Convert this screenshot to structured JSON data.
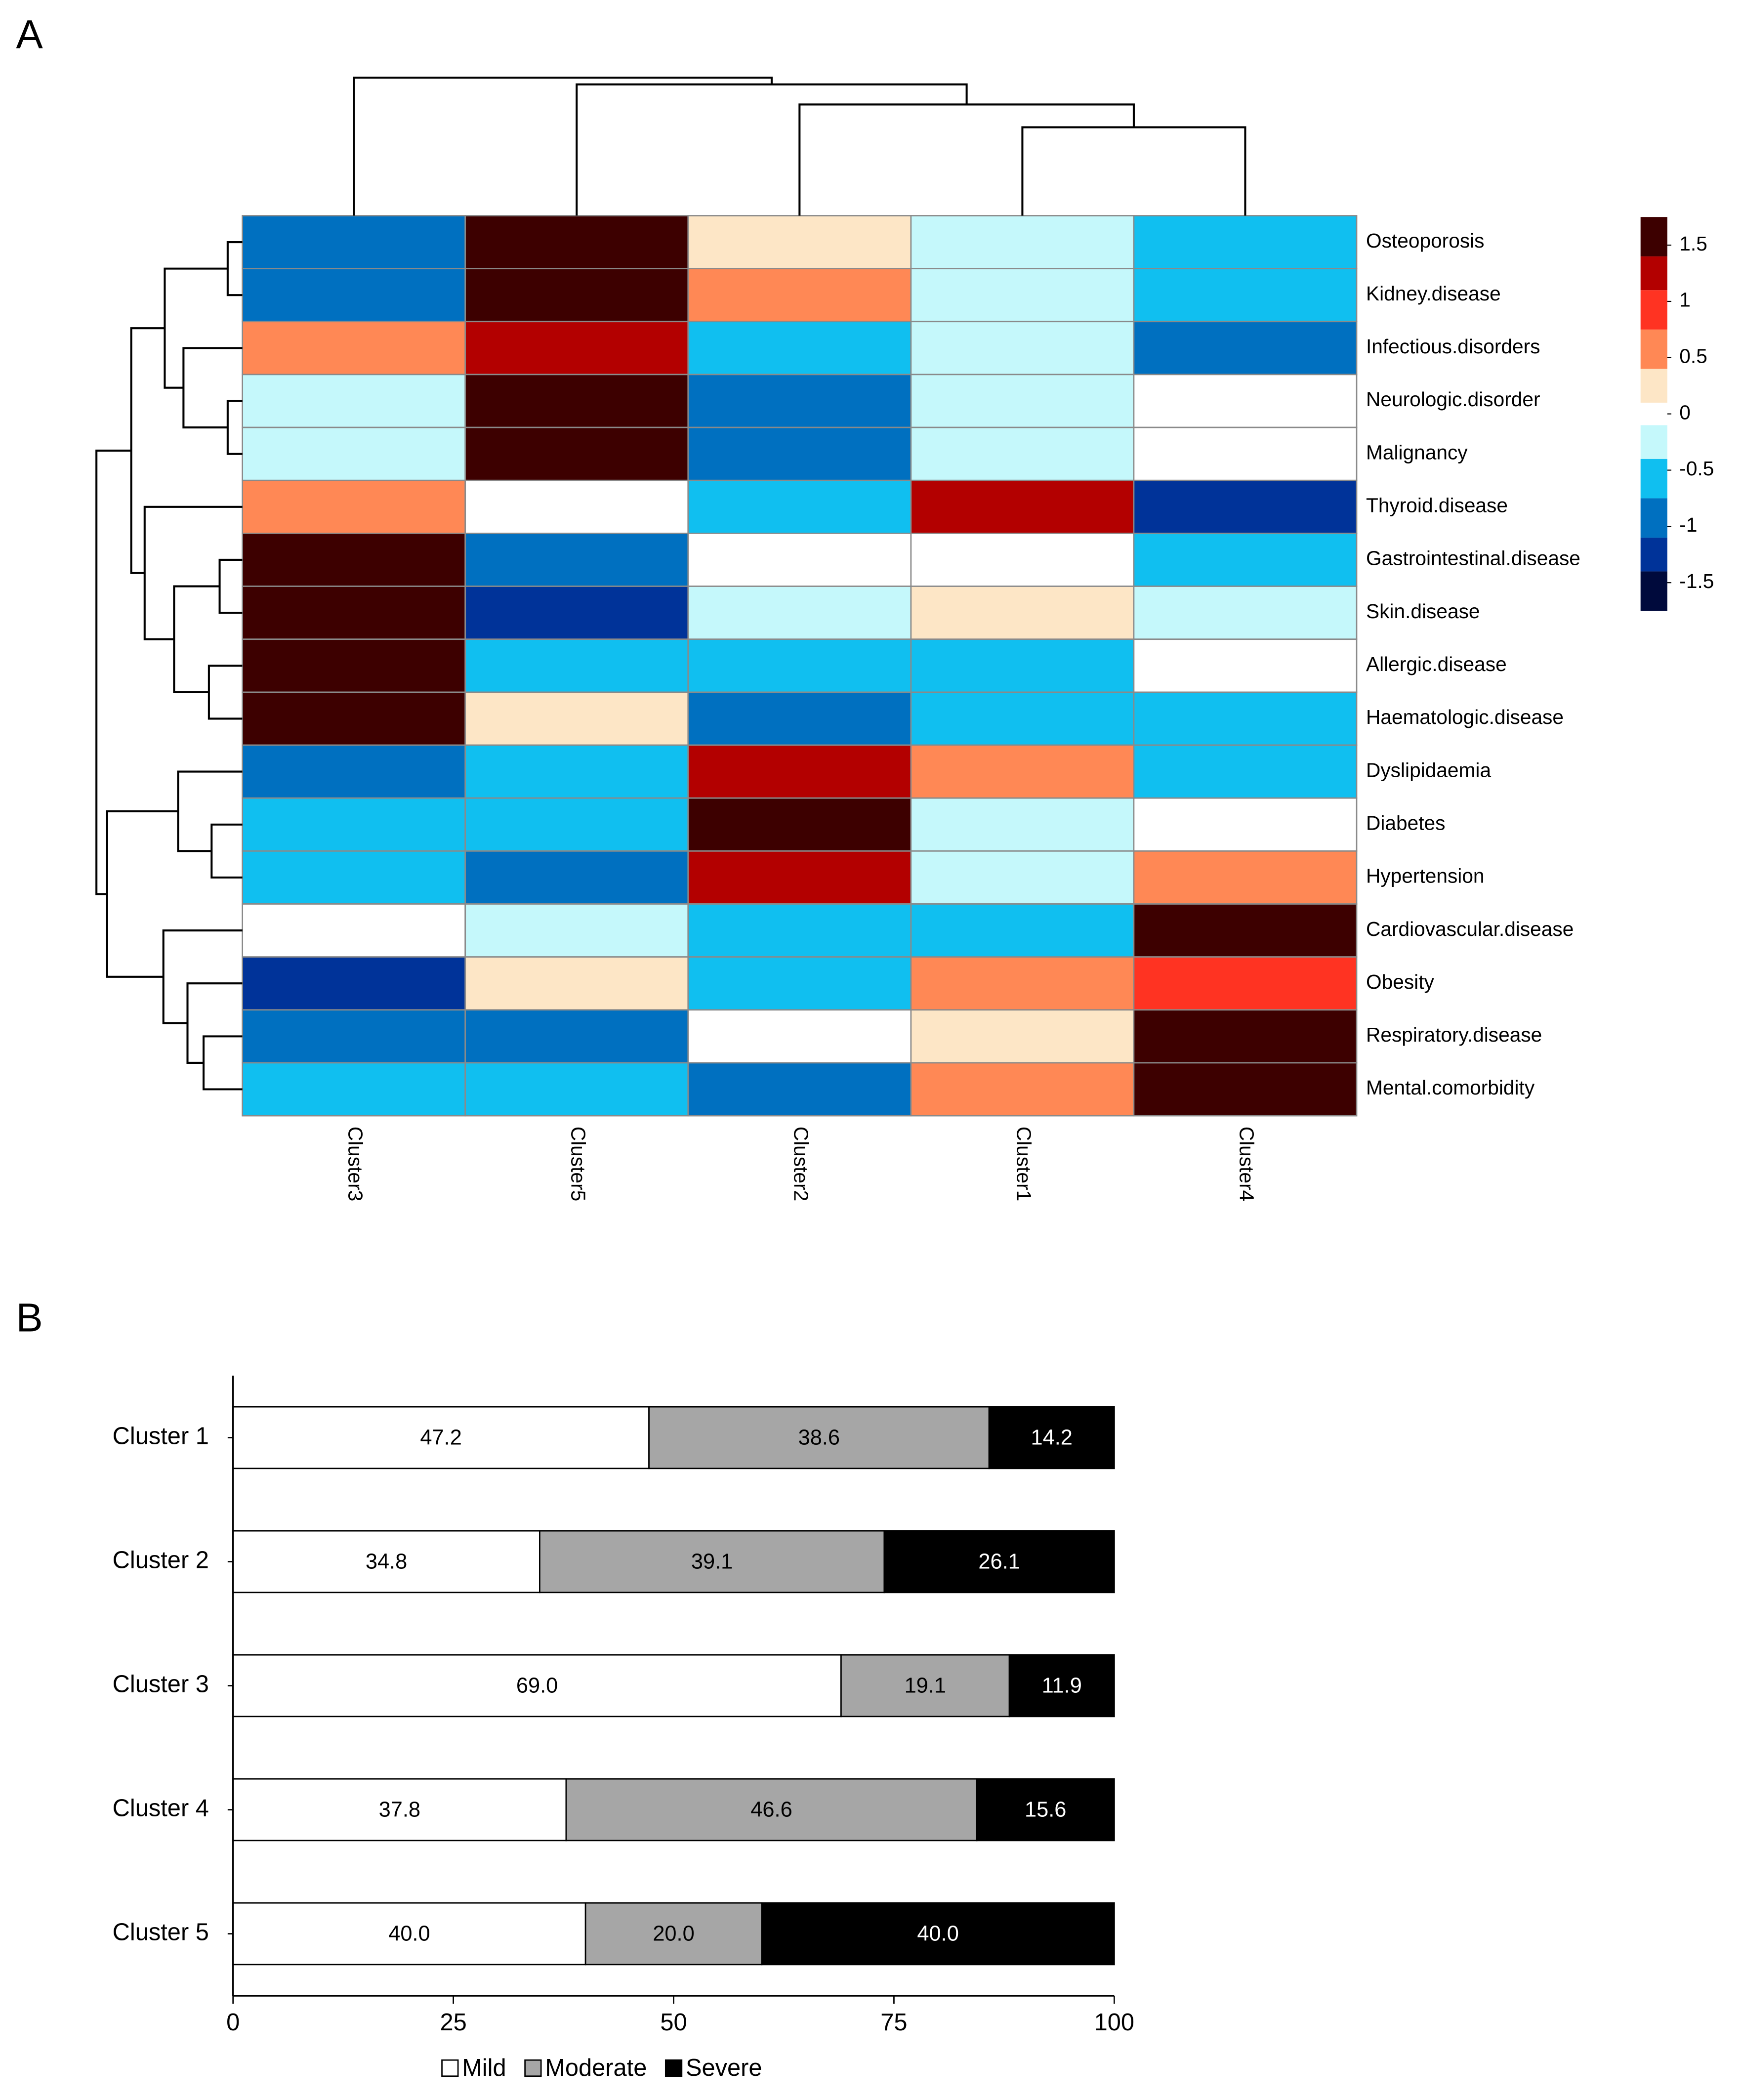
{
  "chart_data": [
    {
      "type": "heatmap",
      "panel_label": "A",
      "columns": [
        "Cluster3",
        "Cluster5",
        "Cluster2",
        "Cluster1",
        "Cluster4"
      ],
      "rows": [
        "Osteoporosis",
        "Kidney.disease",
        "Infectious.disorders",
        "Neurologic.disorder",
        "Malignancy",
        "Thyroid.disease",
        "Gastrointestinal.disease",
        "Skin.disease",
        "Allergic.disease",
        "Haematologic.disease",
        "Dyslipidaemia",
        "Diabetes",
        "Hypertension",
        "Cardiovascular.disease",
        "Obesity",
        "Respiratory.disease",
        "Mental.comorbidity"
      ],
      "values": [
        [
          -0.9,
          1.6,
          0.25,
          -0.25,
          -0.55
        ],
        [
          -0.9,
          1.6,
          0.55,
          -0.25,
          -0.55
        ],
        [
          0.55,
          1.25,
          -0.55,
          -0.25,
          -0.9
        ],
        [
          -0.25,
          1.6,
          -0.9,
          -0.25,
          0
        ],
        [
          -0.25,
          1.6,
          -0.9,
          -0.25,
          0
        ],
        [
          0.55,
          0,
          -0.55,
          1.25,
          -1.25
        ],
        [
          1.6,
          -0.9,
          0,
          0,
          -0.55
        ],
        [
          1.6,
          -1.25,
          -0.25,
          0.25,
          -0.25
        ],
        [
          1.6,
          -0.55,
          -0.55,
          -0.55,
          0
        ],
        [
          1.6,
          0.25,
          -0.9,
          -0.55,
          -0.55
        ],
        [
          -0.9,
          -0.55,
          1.25,
          0.55,
          -0.55
        ],
        [
          -0.55,
          -0.55,
          1.6,
          -0.25,
          0
        ],
        [
          -0.55,
          -0.9,
          1.25,
          -0.25,
          0.55
        ],
        [
          0,
          -0.25,
          -0.55,
          -0.55,
          1.6
        ],
        [
          -1.25,
          0.25,
          -0.55,
          0.55,
          0.9
        ],
        [
          -0.9,
          -0.9,
          0,
          0.25,
          1.6
        ],
        [
          -0.55,
          -0.55,
          -0.9,
          0.55,
          1.6
        ]
      ],
      "clim": [
        -1.75,
        1.75
      ],
      "cticks": [
        1.5,
        1,
        0.5,
        0,
        -0.5,
        -1,
        -1.5
      ],
      "colorbar": {
        "breaks": [
          -1.75,
          -1.4,
          -1.1,
          -0.75,
          -0.4,
          -0.1,
          0.1,
          0.4,
          0.75,
          1.1,
          1.4,
          1.75
        ],
        "colors": [
          "#000a3c",
          "#003399",
          "#0070c0",
          "#10bff0",
          "#c5f8fb",
          "#ffffff",
          "#fde6c6",
          "#ff8855",
          "#ff3322",
          "#b30000",
          "#3d0000"
        ]
      }
    },
    {
      "type": "stacked_barh",
      "panel_label": "B",
      "categories": [
        "Cluster 1",
        "Cluster 2",
        "Cluster 3",
        "Cluster 4",
        "Cluster 5"
      ],
      "series": [
        {
          "name": "Mild",
          "color": "#ffffff",
          "label_color": "#000000",
          "values": [
            47.2,
            34.8,
            69.0,
            37.8,
            40.0
          ],
          "value_labels": [
            "47.2",
            "34.8",
            "69.0",
            "37.8",
            "40.0"
          ]
        },
        {
          "name": "Moderate",
          "color": "#a6a6a6",
          "label_color": "#000000",
          "values": [
            38.6,
            39.1,
            19.1,
            46.6,
            20.0
          ],
          "value_labels": [
            "38.6",
            "39.1",
            "19.1",
            "46.6",
            "20.0"
          ]
        },
        {
          "name": "Severe",
          "color": "#000000",
          "label_color": "#ffffff",
          "values": [
            14.2,
            26.1,
            11.9,
            15.6,
            40.0
          ],
          "value_labels": [
            "14.2",
            "26.1",
            "11.9",
            "15.6",
            "40.0"
          ]
        }
      ],
      "xlim": [
        0,
        100
      ],
      "xticks": [
        0,
        25,
        50,
        75,
        100
      ],
      "legend": "bottom"
    }
  ]
}
